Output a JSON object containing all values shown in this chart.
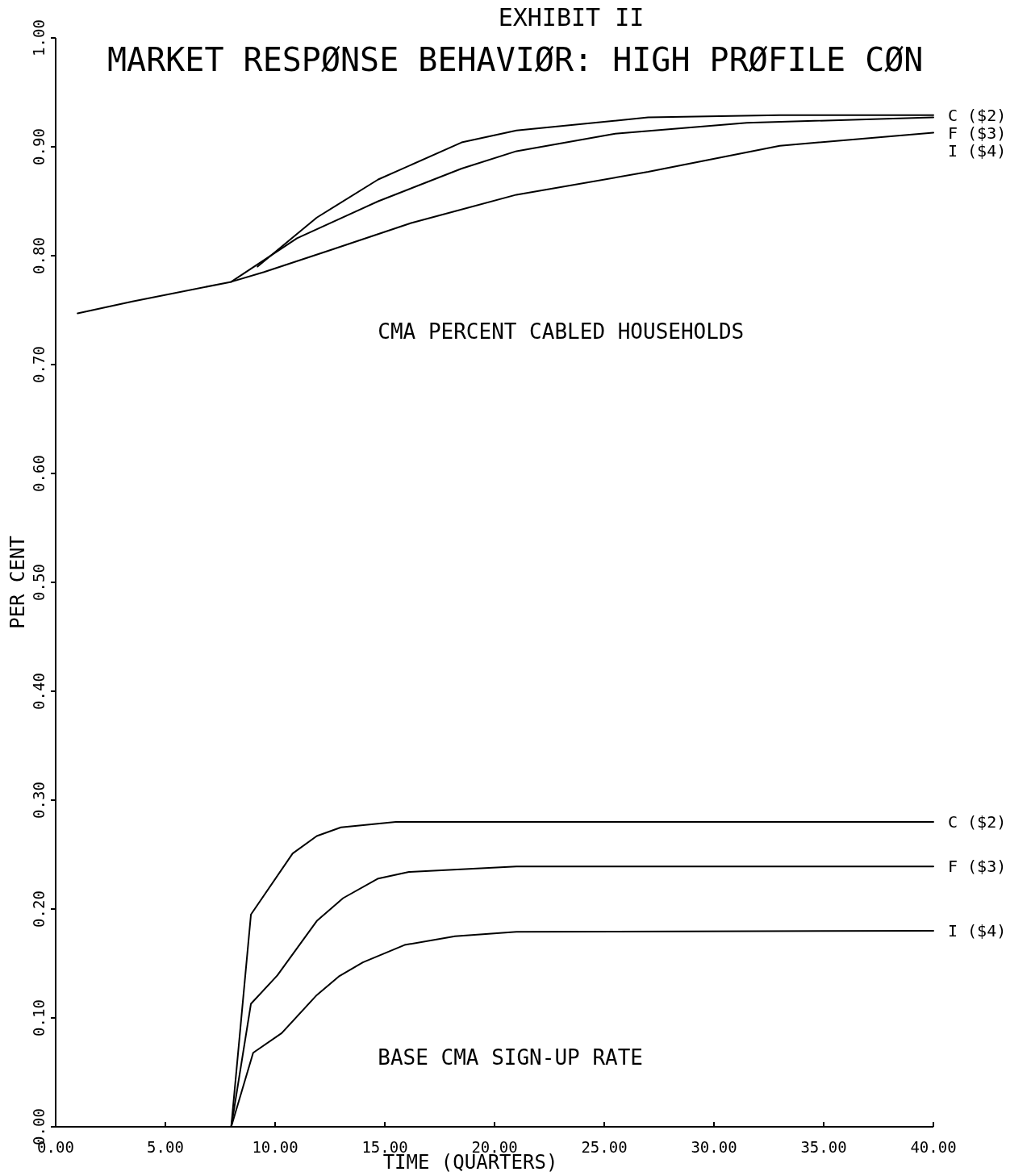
{
  "chart_data": {
    "type": "line",
    "title": "EXHIBIT II",
    "subtitle": "MARKET RESPØNSE BEHAVIØR: HIGH PRØFILE CØN",
    "xlabel": "TIME (QUARTERS)",
    "ylabel": "PER CENT",
    "xlim": [
      0,
      40
    ],
    "ylim": [
      0,
      1
    ],
    "xticks": [
      {
        "value": 0,
        "label": "0.00"
      },
      {
        "value": 5,
        "label": "5.00"
      },
      {
        "value": 10,
        "label": "10.00"
      },
      {
        "value": 15,
        "label": "15.00"
      },
      {
        "value": 20,
        "label": "20.00"
      },
      {
        "value": 25,
        "label": "25.00"
      },
      {
        "value": 30,
        "label": "30.00"
      },
      {
        "value": 35,
        "label": "35.00"
      },
      {
        "value": 40,
        "label": "40.00"
      }
    ],
    "yticks": [
      {
        "value": 0,
        "label": "0.00"
      },
      {
        "value": 0.1,
        "label": "0.10"
      },
      {
        "value": 0.2,
        "label": "0.20"
      },
      {
        "value": 0.3,
        "label": "0.30"
      },
      {
        "value": 0.4,
        "label": "0.40"
      },
      {
        "value": 0.5,
        "label": "0.50"
      },
      {
        "value": 0.6,
        "label": "0.60"
      },
      {
        "value": 0.7,
        "label": "0.70"
      },
      {
        "value": 0.8,
        "label": "0.80"
      },
      {
        "value": 0.9,
        "label": "0.90"
      },
      {
        "value": 1,
        "label": "1.00"
      }
    ],
    "grid": false,
    "marker": "none",
    "line_style": "solid",
    "annotations": [
      "CMA PERCENT CABLED HOUSEHOLDS",
      "BASE CMA SIGN-UP RATE"
    ],
    "series": [
      {
        "name": "C ($2)",
        "color": "#000000",
        "x": [
          9.2,
          11.9,
          14.7,
          18.5,
          21,
          27,
          33,
          40
        ],
        "values": [
          0.79,
          0.835,
          0.87,
          0.904,
          0.915,
          0.927,
          0.929,
          0.929
        ]
      },
      {
        "name": "F ($3)",
        "color": "#000000",
        "x": [
          8,
          11,
          14.7,
          18.5,
          21,
          25.5,
          31.5,
          40
        ],
        "values": [
          0.776,
          0.816,
          0.85,
          0.88,
          0.896,
          0.912,
          0.922,
          0.927
        ]
      },
      {
        "name": "I ($4)",
        "color": "#000000",
        "x": [
          1,
          3.5,
          8,
          9.5,
          12.5,
          16.2,
          21,
          27,
          33,
          40
        ],
        "values": [
          0.747,
          0.758,
          0.776,
          0.785,
          0.805,
          0.83,
          0.856,
          0.877,
          0.901,
          0.913
        ]
      },
      {
        "name": "C ($2)",
        "color": "#000000",
        "x": [
          8,
          8.9,
          10.8,
          11.9,
          13,
          15.5,
          40
        ],
        "values": [
          0,
          0.195,
          0.251,
          0.267,
          0.275,
          0.28,
          0.28
        ]
      },
      {
        "name": "F ($3)",
        "color": "#000000",
        "x": [
          8,
          8.9,
          10.1,
          11.9,
          13.1,
          14.7,
          16.1,
          21,
          40
        ],
        "values": [
          0,
          0.113,
          0.139,
          0.189,
          0.21,
          0.228,
          0.234,
          0.239,
          0.239
        ]
      },
      {
        "name": "I ($4)",
        "color": "#000000",
        "x": [
          8,
          9,
          10.3,
          11.9,
          12.9,
          14,
          15.9,
          18.2,
          21,
          40
        ],
        "values": [
          0,
          0.068,
          0.086,
          0.121,
          0.138,
          0.151,
          0.167,
          0.175,
          0.179,
          0.18
        ]
      }
    ]
  }
}
